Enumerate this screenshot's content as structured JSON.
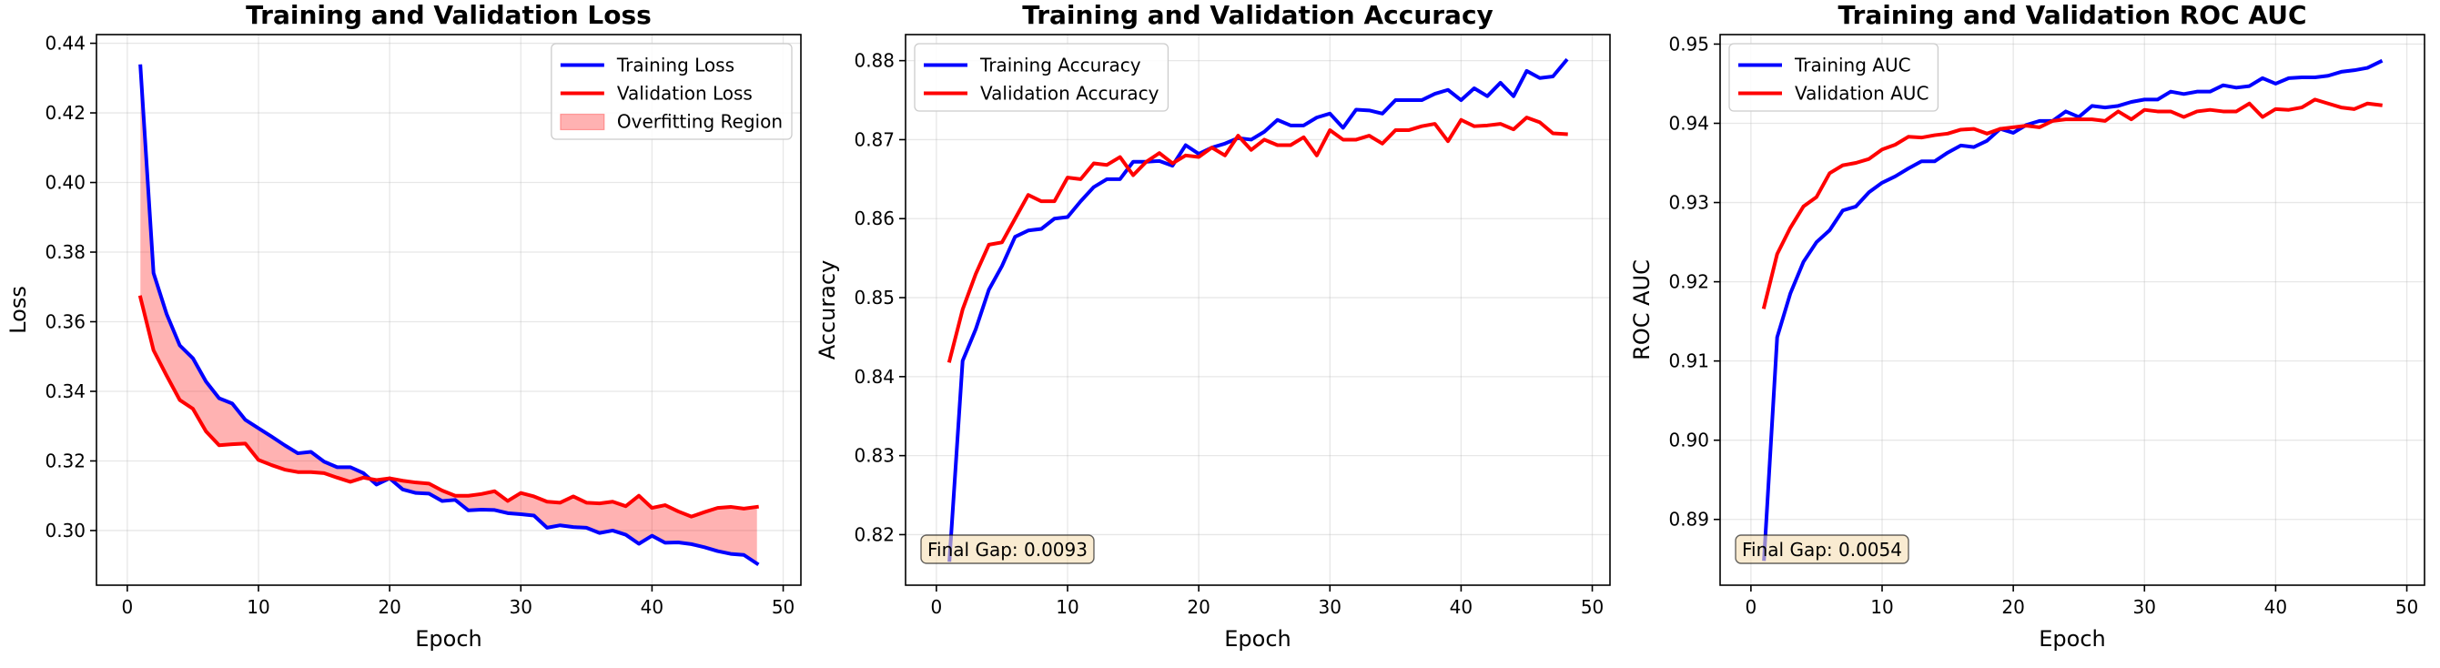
{
  "figure": {
    "background": "#ffffff"
  },
  "chart_data": [
    {
      "type": "line",
      "title": "Training and Validation Loss",
      "xlabel": "Epoch",
      "ylabel": "Loss",
      "xlim": [
        -2.35,
        51.35
      ],
      "ylim": [
        0.2843,
        0.4425
      ],
      "xticks": [
        0,
        10,
        20,
        30,
        40,
        50
      ],
      "yticks": [
        0.3,
        0.32,
        0.34,
        0.36,
        0.38,
        0.4,
        0.42,
        0.44
      ],
      "ytick_decimals": 2,
      "grid": true,
      "legend": "top-right",
      "x_start": 1,
      "series": [
        {
          "name": "Training Loss",
          "color": "#0000ff",
          "values": [
            0.4334,
            0.374,
            0.3622,
            0.3532,
            0.3495,
            0.3428,
            0.338,
            0.3365,
            0.3318,
            0.3294,
            0.327,
            0.3245,
            0.3222,
            0.3226,
            0.3198,
            0.3182,
            0.3182,
            0.3165,
            0.3132,
            0.315,
            0.3118,
            0.3108,
            0.3106,
            0.3085,
            0.3088,
            0.3058,
            0.306,
            0.3059,
            0.305,
            0.3047,
            0.3043,
            0.3008,
            0.3015,
            0.301,
            0.3008,
            0.2993,
            0.3,
            0.2988,
            0.2962,
            0.2985,
            0.2965,
            0.2966,
            0.2961,
            0.2952,
            0.2941,
            0.2933,
            0.293,
            0.2905
          ]
        },
        {
          "name": "Validation Loss",
          "color": "#ff0000",
          "values": [
            0.367,
            0.3518,
            0.3445,
            0.3375,
            0.335,
            0.3285,
            0.3245,
            0.3248,
            0.325,
            0.3203,
            0.3188,
            0.3175,
            0.3168,
            0.3168,
            0.3165,
            0.3152,
            0.314,
            0.3152,
            0.3145,
            0.315,
            0.3143,
            0.3138,
            0.3135,
            0.3115,
            0.31,
            0.31,
            0.3105,
            0.3113,
            0.3085,
            0.3108,
            0.3098,
            0.3083,
            0.308,
            0.3098,
            0.308,
            0.3078,
            0.3083,
            0.307,
            0.31,
            0.3065,
            0.3073,
            0.3055,
            0.304,
            0.3053,
            0.3065,
            0.3068,
            0.3063,
            0.3068
          ]
        }
      ],
      "fill_between": {
        "name": "Overfitting Region",
        "color": "#ff0000",
        "opacity": 0.3
      }
    },
    {
      "type": "line",
      "title": "Training and Validation Accuracy",
      "xlabel": "Epoch",
      "ylabel": "Accuracy",
      "xlim": [
        -2.35,
        51.35
      ],
      "ylim": [
        0.8136,
        0.8833
      ],
      "xticks": [
        0,
        10,
        20,
        30,
        40,
        50
      ],
      "yticks": [
        0.82,
        0.83,
        0.84,
        0.85,
        0.86,
        0.87,
        0.88
      ],
      "ytick_decimals": 2,
      "grid": true,
      "legend": "top-left",
      "x_start": 1,
      "annotation": "Final Gap: 0.0093",
      "series": [
        {
          "name": "Training Accuracy",
          "color": "#0000ff",
          "values": [
            0.8168,
            0.842,
            0.846,
            0.851,
            0.854,
            0.8577,
            0.8585,
            0.8587,
            0.86,
            0.8602,
            0.8622,
            0.864,
            0.865,
            0.865,
            0.8672,
            0.8672,
            0.8673,
            0.8667,
            0.8693,
            0.8682,
            0.869,
            0.8695,
            0.8702,
            0.87,
            0.871,
            0.8725,
            0.8718,
            0.8718,
            0.8728,
            0.8733,
            0.8715,
            0.8738,
            0.8737,
            0.8733,
            0.875,
            0.875,
            0.875,
            0.8758,
            0.8763,
            0.875,
            0.8765,
            0.8755,
            0.8772,
            0.8755,
            0.8787,
            0.8778,
            0.878,
            0.88
          ]
        },
        {
          "name": "Validation Accuracy",
          "color": "#ff0000",
          "values": [
            0.842,
            0.8485,
            0.853,
            0.8567,
            0.857,
            0.86,
            0.863,
            0.8622,
            0.8622,
            0.8652,
            0.865,
            0.867,
            0.8668,
            0.8678,
            0.8655,
            0.8672,
            0.8683,
            0.867,
            0.868,
            0.8678,
            0.869,
            0.868,
            0.8705,
            0.8687,
            0.87,
            0.8693,
            0.8693,
            0.8703,
            0.868,
            0.8712,
            0.87,
            0.87,
            0.8705,
            0.8695,
            0.8712,
            0.8712,
            0.8717,
            0.872,
            0.8698,
            0.8725,
            0.8717,
            0.8718,
            0.872,
            0.8713,
            0.8728,
            0.8722,
            0.8708,
            0.8707
          ]
        }
      ]
    },
    {
      "type": "line",
      "title": "Training and Validation ROC AUC",
      "xlabel": "Epoch",
      "ylabel": "ROC AUC",
      "xlim": [
        -2.35,
        51.35
      ],
      "ylim": [
        0.8817,
        0.9512
      ],
      "xticks": [
        0,
        10,
        20,
        30,
        40,
        50
      ],
      "yticks": [
        0.89,
        0.9,
        0.91,
        0.92,
        0.93,
        0.94,
        0.95
      ],
      "ytick_decimals": 2,
      "grid": true,
      "legend": "top-left",
      "x_start": 1,
      "annotation": "Final Gap: 0.0054",
      "series": [
        {
          "name": "Training AUC",
          "color": "#0000ff",
          "values": [
            0.885,
            0.913,
            0.9185,
            0.9225,
            0.925,
            0.9265,
            0.929,
            0.9295,
            0.9313,
            0.9325,
            0.9333,
            0.9343,
            0.9352,
            0.9352,
            0.9363,
            0.9372,
            0.937,
            0.9378,
            0.9393,
            0.9388,
            0.9398,
            0.9403,
            0.9403,
            0.9415,
            0.9408,
            0.9422,
            0.942,
            0.9422,
            0.9427,
            0.943,
            0.943,
            0.944,
            0.9437,
            0.944,
            0.944,
            0.9448,
            0.9445,
            0.9447,
            0.9457,
            0.945,
            0.9457,
            0.9458,
            0.9458,
            0.946,
            0.9465,
            0.9467,
            0.947,
            0.9478
          ]
        },
        {
          "name": "Validation AUC",
          "color": "#ff0000",
          "values": [
            0.9168,
            0.9235,
            0.9268,
            0.9295,
            0.9307,
            0.9337,
            0.9347,
            0.935,
            0.9355,
            0.9367,
            0.9373,
            0.9383,
            0.9382,
            0.9385,
            0.9387,
            0.9392,
            0.9393,
            0.9387,
            0.9393,
            0.9395,
            0.9397,
            0.9395,
            0.9403,
            0.9405,
            0.9405,
            0.9405,
            0.9403,
            0.9415,
            0.9405,
            0.9417,
            0.9415,
            0.9415,
            0.9408,
            0.9415,
            0.9417,
            0.9415,
            0.9415,
            0.9425,
            0.9408,
            0.9418,
            0.9417,
            0.942,
            0.943,
            0.9425,
            0.942,
            0.9418,
            0.9425,
            0.9423
          ]
        }
      ]
    }
  ]
}
